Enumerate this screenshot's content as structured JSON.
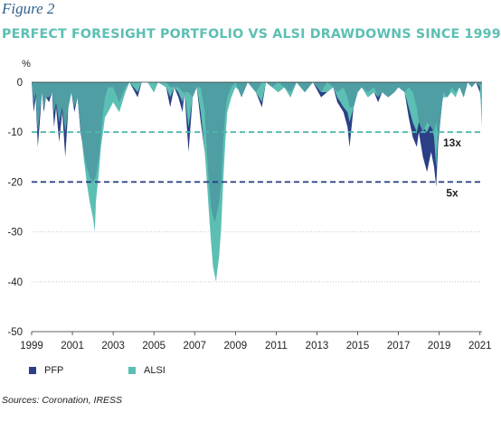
{
  "figure_label": "Figure 2",
  "title": "PERFECT FORESIGHT PORTFOLIO VS ALSI DRAWDOWNS SINCE 1999",
  "source": "Sources: Coronation, IRESS",
  "colors": {
    "pfp": "#2b3f86",
    "alsi": "#5cbfb3",
    "title": "#5cbfb3",
    "overlap": "#4e9ea4"
  },
  "chart_data": {
    "type": "area",
    "ylabel": "%",
    "ylim": [
      -50,
      0
    ],
    "yticks": [
      0,
      -10,
      -20,
      -30,
      -40,
      -50
    ],
    "xlim": [
      1999,
      2021.1
    ],
    "xticks": [
      "1999",
      "2001",
      "2003",
      "2005",
      "2007",
      "2009",
      "2011",
      "2013",
      "2015",
      "2017",
      "2019",
      "2021"
    ],
    "grid": "dotted horizontal",
    "legend": "bottom-left",
    "reference_lines": [
      {
        "value": -10,
        "label": "13x",
        "color": "#4fb8ad"
      },
      {
        "value": -20,
        "label": "5x",
        "color": "#223a80"
      }
    ],
    "series": [
      {
        "name": "PFP",
        "values": [
          [
            1999.0,
            0
          ],
          [
            1999.1,
            -6
          ],
          [
            1999.2,
            -3
          ],
          [
            1999.3,
            -13
          ],
          [
            1999.4,
            -8
          ],
          [
            1999.5,
            -2
          ],
          [
            1999.6,
            -6
          ],
          [
            1999.7,
            -3
          ],
          [
            1999.85,
            -4
          ],
          [
            2000.0,
            -2
          ],
          [
            2000.1,
            -9
          ],
          [
            2000.2,
            -5
          ],
          [
            2000.35,
            -12
          ],
          [
            2000.5,
            -6
          ],
          [
            2000.65,
            -15
          ],
          [
            2000.8,
            -5
          ],
          [
            2000.95,
            -2
          ],
          [
            2001.1,
            -6
          ],
          [
            2001.25,
            -3
          ],
          [
            2001.4,
            -10
          ],
          [
            2001.55,
            -14
          ],
          [
            2001.7,
            -17
          ],
          [
            2001.85,
            -19
          ],
          [
            2002.0,
            -20
          ],
          [
            2002.15,
            -19
          ],
          [
            2002.3,
            -15
          ],
          [
            2002.4,
            -11
          ],
          [
            2002.5,
            -6
          ],
          [
            2002.6,
            -3
          ],
          [
            2002.75,
            -1
          ],
          [
            2003.0,
            -1
          ],
          [
            2003.3,
            -4
          ],
          [
            2003.6,
            -1
          ],
          [
            2003.8,
            0
          ],
          [
            2004.2,
            -3
          ],
          [
            2004.4,
            0
          ],
          [
            2004.7,
            0
          ],
          [
            2005.0,
            -2
          ],
          [
            2005.2,
            0
          ],
          [
            2005.6,
            -1
          ],
          [
            2005.8,
            -5
          ],
          [
            2006.0,
            -1
          ],
          [
            2006.2,
            -3
          ],
          [
            2006.4,
            -6
          ],
          [
            2006.5,
            -2
          ],
          [
            2006.7,
            -14
          ],
          [
            2006.9,
            -3
          ],
          [
            2007.1,
            -1
          ],
          [
            2007.3,
            -8
          ],
          [
            2007.5,
            -14
          ],
          [
            2007.6,
            -18
          ],
          [
            2007.7,
            -21
          ],
          [
            2007.8,
            -25
          ],
          [
            2007.9,
            -27
          ],
          [
            2008.0,
            -28
          ],
          [
            2008.1,
            -26
          ],
          [
            2008.2,
            -24
          ],
          [
            2008.3,
            -20
          ],
          [
            2008.4,
            -12
          ],
          [
            2008.5,
            -6
          ],
          [
            2008.6,
            -3
          ],
          [
            2008.8,
            -1
          ],
          [
            2009.0,
            0
          ],
          [
            2009.3,
            -3
          ],
          [
            2009.6,
            0
          ],
          [
            2010.0,
            -2
          ],
          [
            2010.3,
            -5
          ],
          [
            2010.5,
            0
          ],
          [
            2010.8,
            -1
          ],
          [
            2011.1,
            -2
          ],
          [
            2011.4,
            -1
          ],
          [
            2011.7,
            -3
          ],
          [
            2012.0,
            0
          ],
          [
            2012.4,
            -2
          ],
          [
            2012.8,
            0
          ],
          [
            2013.2,
            -3
          ],
          [
            2013.5,
            -2
          ],
          [
            2013.8,
            -1
          ],
          [
            2014.0,
            -4
          ],
          [
            2014.3,
            -6
          ],
          [
            2014.5,
            -9
          ],
          [
            2014.6,
            -13
          ],
          [
            2014.8,
            -5
          ],
          [
            2015.0,
            -2
          ],
          [
            2015.2,
            -1
          ],
          [
            2015.5,
            -3
          ],
          [
            2015.8,
            -2
          ],
          [
            2016.0,
            -4
          ],
          [
            2016.2,
            -2
          ],
          [
            2016.5,
            -3
          ],
          [
            2016.8,
            -2
          ],
          [
            2017.0,
            -1
          ],
          [
            2017.3,
            -2
          ],
          [
            2017.5,
            -7
          ],
          [
            2017.7,
            -11
          ],
          [
            2017.9,
            -13
          ],
          [
            2018.0,
            -10
          ],
          [
            2018.2,
            -15
          ],
          [
            2018.4,
            -18
          ],
          [
            2018.6,
            -14
          ],
          [
            2018.75,
            -17
          ],
          [
            2018.85,
            -21
          ],
          [
            2018.95,
            -12
          ],
          [
            2019.1,
            -6
          ],
          [
            2019.2,
            -2
          ],
          [
            2019.4,
            -3
          ],
          [
            2019.6,
            -1
          ],
          [
            2019.8,
            -2
          ],
          [
            2020.0,
            -1
          ],
          [
            2020.2,
            -3
          ],
          [
            2020.4,
            0
          ],
          [
            2020.6,
            -1
          ],
          [
            2020.8,
            0
          ],
          [
            2021.0,
            -2
          ],
          [
            2021.1,
            -6
          ]
        ]
      },
      {
        "name": "ALSI",
        "values": [
          [
            1999.0,
            0
          ],
          [
            1999.1,
            -4
          ],
          [
            1999.2,
            -2
          ],
          [
            1999.3,
            -10
          ],
          [
            1999.4,
            -6
          ],
          [
            1999.5,
            -2
          ],
          [
            1999.6,
            -5
          ],
          [
            1999.7,
            -3
          ],
          [
            1999.85,
            -3
          ],
          [
            2000.0,
            -2
          ],
          [
            2000.1,
            -6
          ],
          [
            2000.2,
            -4
          ],
          [
            2000.35,
            -8
          ],
          [
            2000.5,
            -5
          ],
          [
            2000.65,
            -10
          ],
          [
            2000.8,
            -5
          ],
          [
            2000.95,
            -2
          ],
          [
            2001.1,
            -5
          ],
          [
            2001.25,
            -3
          ],
          [
            2001.4,
            -9
          ],
          [
            2001.55,
            -15
          ],
          [
            2001.7,
            -20
          ],
          [
            2001.85,
            -24
          ],
          [
            2002.0,
            -27
          ],
          [
            2002.1,
            -30
          ],
          [
            2002.15,
            -24
          ],
          [
            2002.3,
            -18
          ],
          [
            2002.4,
            -13
          ],
          [
            2002.5,
            -10
          ],
          [
            2002.6,
            -7
          ],
          [
            2002.75,
            -6
          ],
          [
            2003.0,
            -4
          ],
          [
            2003.3,
            -6
          ],
          [
            2003.6,
            -2
          ],
          [
            2003.8,
            0
          ],
          [
            2004.2,
            -2
          ],
          [
            2004.4,
            0
          ],
          [
            2004.7,
            0
          ],
          [
            2005.0,
            -2
          ],
          [
            2005.2,
            0
          ],
          [
            2005.6,
            -1
          ],
          [
            2005.8,
            -3
          ],
          [
            2006.0,
            -1
          ],
          [
            2006.2,
            -2
          ],
          [
            2006.4,
            -4
          ],
          [
            2006.5,
            -2
          ],
          [
            2006.7,
            -9
          ],
          [
            2006.9,
            -3
          ],
          [
            2007.1,
            -1
          ],
          [
            2007.3,
            -6
          ],
          [
            2007.5,
            -14
          ],
          [
            2007.6,
            -20
          ],
          [
            2007.7,
            -26
          ],
          [
            2007.8,
            -32
          ],
          [
            2007.9,
            -37
          ],
          [
            2008.0,
            -39
          ],
          [
            2008.05,
            -40
          ],
          [
            2008.1,
            -38
          ],
          [
            2008.2,
            -35
          ],
          [
            2008.3,
            -29
          ],
          [
            2008.4,
            -20
          ],
          [
            2008.5,
            -12
          ],
          [
            2008.6,
            -6
          ],
          [
            2008.8,
            -3
          ],
          [
            2009.0,
            -1
          ],
          [
            2009.3,
            -2
          ],
          [
            2009.6,
            0
          ],
          [
            2010.0,
            -2
          ],
          [
            2010.3,
            -4
          ],
          [
            2010.5,
            0
          ],
          [
            2010.8,
            -1
          ],
          [
            2011.1,
            -2
          ],
          [
            2011.4,
            -1
          ],
          [
            2011.7,
            -3
          ],
          [
            2012.0,
            0
          ],
          [
            2012.4,
            -2
          ],
          [
            2012.8,
            0
          ],
          [
            2013.2,
            -2
          ],
          [
            2013.5,
            -2
          ],
          [
            2013.8,
            -1
          ],
          [
            2014.0,
            -3
          ],
          [
            2014.3,
            -5
          ],
          [
            2014.5,
            -6
          ],
          [
            2014.6,
            -8
          ],
          [
            2014.8,
            -5
          ],
          [
            2015.0,
            -2
          ],
          [
            2015.2,
            -1
          ],
          [
            2015.5,
            -3
          ],
          [
            2015.8,
            -2
          ],
          [
            2016.0,
            -3
          ],
          [
            2016.2,
            -2
          ],
          [
            2016.5,
            -2
          ],
          [
            2016.8,
            -2
          ],
          [
            2017.0,
            -1
          ],
          [
            2017.3,
            -2
          ],
          [
            2017.5,
            -5
          ],
          [
            2017.7,
            -8
          ],
          [
            2017.9,
            -10
          ],
          [
            2018.0,
            -8
          ],
          [
            2018.2,
            -9
          ],
          [
            2018.4,
            -10
          ],
          [
            2018.6,
            -8
          ],
          [
            2018.75,
            -11
          ],
          [
            2018.85,
            -17
          ],
          [
            2018.95,
            -10
          ],
          [
            2019.1,
            -5
          ],
          [
            2019.2,
            -3
          ],
          [
            2019.4,
            -3
          ],
          [
            2019.6,
            -2
          ],
          [
            2019.8,
            -3
          ],
          [
            2020.0,
            -1
          ],
          [
            2020.2,
            -3
          ],
          [
            2020.4,
            0
          ],
          [
            2020.6,
            -1
          ],
          [
            2020.8,
            0
          ],
          [
            2021.0,
            -1
          ],
          [
            2021.1,
            -9
          ]
        ]
      }
    ]
  }
}
